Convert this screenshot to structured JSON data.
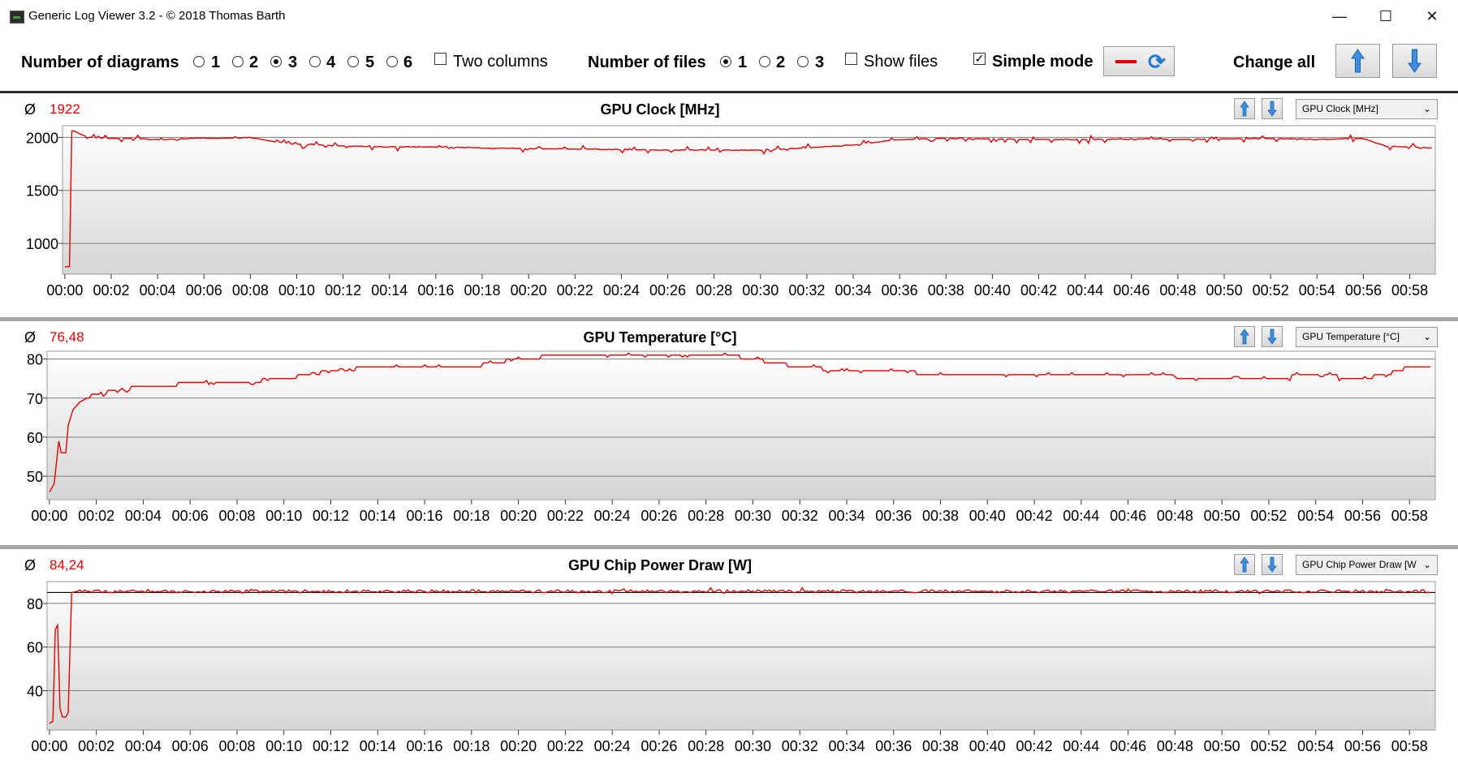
{
  "window": {
    "title": "Generic Log Viewer 3.2 - © 2018 Thomas Barth",
    "minimize_glyph": "—",
    "maximize_glyph": "☐",
    "close_glyph": "✕"
  },
  "toolbar": {
    "num_diagrams_label": "Number of diagrams",
    "diagram_options": [
      "1",
      "2",
      "3",
      "4",
      "5",
      "6"
    ],
    "diagrams_selected": "3",
    "two_columns_label": "Two columns",
    "two_columns_checked": false,
    "num_files_label": "Number of files",
    "file_options": [
      "1",
      "2",
      "3"
    ],
    "files_selected": "1",
    "show_files_label": "Show files",
    "show_files_checked": false,
    "simple_mode_label": "Simple mode",
    "simple_mode_checked": true,
    "check_glyph": "✓",
    "change_all_label": "Change all",
    "accent_color": "#e00000",
    "icon_color": "#1f78d1"
  },
  "panels": [
    {
      "title": "GPU Clock [MHz]",
      "avg_symbol": "Ø",
      "avg_value": "1922",
      "selector": "GPU Clock [MHz]",
      "dropdown_glyph": "⌄"
    },
    {
      "title": "GPU Temperature [°C]",
      "avg_symbol": "Ø",
      "avg_value": "76,48",
      "selector": "GPU Temperature [°C]",
      "dropdown_glyph": "⌄"
    },
    {
      "title": "GPU Chip Power Draw [W]",
      "avg_symbol": "Ø",
      "avg_value": "84,24",
      "selector": "GPU Chip Power Draw [W",
      "dropdown_glyph": "⌄"
    }
  ],
  "chart_data": [
    {
      "type": "line",
      "title": "GPU Clock [MHz]",
      "line_color": "#e00000",
      "x_ticks": [
        "00:00",
        "00:02",
        "00:04",
        "00:06",
        "00:08",
        "00:10",
        "00:12",
        "00:14",
        "00:16",
        "00:18",
        "00:20",
        "00:22",
        "00:24",
        "00:26",
        "00:28",
        "00:30",
        "00:32",
        "00:34",
        "00:36",
        "00:38",
        "00:40",
        "00:42",
        "00:44",
        "00:46",
        "00:48",
        "00:50",
        "00:52",
        "00:54",
        "00:56",
        "00:58"
      ],
      "y_ticks": [
        1000,
        1500,
        2000
      ],
      "ylim": [
        710,
        2110
      ],
      "xlim_minutes": [
        -0.1,
        59.1
      ],
      "grid": true,
      "x_minutes": [
        0.0,
        0.2,
        0.3,
        0.4,
        1,
        2,
        3,
        4,
        5,
        6,
        7,
        8,
        9,
        10,
        12,
        14,
        16,
        18,
        20,
        22,
        24,
        26,
        28,
        30,
        32,
        34,
        36,
        38,
        40,
        42,
        44,
        46,
        48,
        50,
        52,
        54,
        56,
        57,
        58,
        59
      ],
      "y": [
        780,
        780,
        2060,
        2060,
        2000,
        1990,
        1990,
        1975,
        1985,
        1995,
        1990,
        2000,
        1960,
        1935,
        1920,
        1910,
        1910,
        1900,
        1895,
        1890,
        1885,
        1880,
        1880,
        1880,
        1900,
        1930,
        1980,
        1990,
        1985,
        1980,
        1980,
        1985,
        1980,
        1985,
        1990,
        1980,
        1990,
        1915,
        1910,
        1900
      ],
      "noise": 26
    },
    {
      "type": "line",
      "title": "GPU Temperature [°C]",
      "line_color": "#e00000",
      "x_ticks": [
        "00:00",
        "00:02",
        "00:04",
        "00:06",
        "00:08",
        "00:10",
        "00:12",
        "00:14",
        "00:16",
        "00:18",
        "00:20",
        "00:22",
        "00:24",
        "00:26",
        "00:28",
        "00:30",
        "00:32",
        "00:34",
        "00:36",
        "00:38",
        "00:40",
        "00:42",
        "00:44",
        "00:46",
        "00:48",
        "00:50",
        "00:52",
        "00:54",
        "00:56",
        "00:58"
      ],
      "y_ticks": [
        50,
        60,
        70,
        80
      ],
      "ylim": [
        44,
        82
      ],
      "xlim_minutes": [
        -0.1,
        59.1
      ],
      "grid": true,
      "x_minutes": [
        0.0,
        0.2,
        0.4,
        0.5,
        0.7,
        0.8,
        1.0,
        1.3,
        1.6,
        2,
        3,
        4,
        5,
        6,
        8,
        10,
        12,
        14,
        16,
        18,
        19,
        20,
        22,
        24,
        26,
        28,
        29,
        30,
        32,
        34,
        36,
        38,
        40,
        42,
        44,
        46,
        48,
        50,
        52,
        54,
        56,
        57,
        58,
        59
      ],
      "y": [
        46,
        48,
        59,
        56,
        56,
        63,
        67,
        69,
        70,
        71,
        72,
        73,
        73,
        74,
        74,
        75,
        77,
        78,
        78,
        78,
        79,
        80,
        81,
        81,
        81,
        81,
        81,
        80,
        78,
        77,
        77,
        76,
        76,
        76,
        75.5,
        75.5,
        75.5,
        75,
        75,
        76,
        75,
        76,
        78,
        78
      ],
      "noise": 0.4
    },
    {
      "type": "line",
      "title": "GPU Chip Power Draw [W]",
      "line_color": "#e00000",
      "x_ticks": [
        "00:00",
        "00:02",
        "00:04",
        "00:06",
        "00:08",
        "00:10",
        "00:12",
        "00:14",
        "00:16",
        "00:18",
        "00:20",
        "00:22",
        "00:24",
        "00:26",
        "00:28",
        "00:30",
        "00:32",
        "00:34",
        "00:36",
        "00:38",
        "00:40",
        "00:42",
        "00:44",
        "00:46",
        "00:48",
        "00:50",
        "00:52",
        "00:54",
        "00:56",
        "00:58"
      ],
      "y_ticks": [
        40,
        60,
        80
      ],
      "ylim": [
        22,
        90
      ],
      "xlim_minutes": [
        -0.1,
        59.1
      ],
      "grid": true,
      "reference_line": 85,
      "x_minutes": [
        0.0,
        0.15,
        0.25,
        0.35,
        0.45,
        0.55,
        0.7,
        0.8,
        0.95,
        1.2,
        5,
        10,
        15,
        20,
        25,
        30,
        35,
        40,
        45,
        50,
        55,
        59
      ],
      "y": [
        25,
        26,
        68,
        70,
        32,
        28,
        28,
        30,
        85,
        85.5,
        85.5,
        85.5,
        85.5,
        85.5,
        85.5,
        85.5,
        85.5,
        85.5,
        85.5,
        85.5,
        85.5,
        85.5
      ],
      "noise": 0.7
    }
  ]
}
